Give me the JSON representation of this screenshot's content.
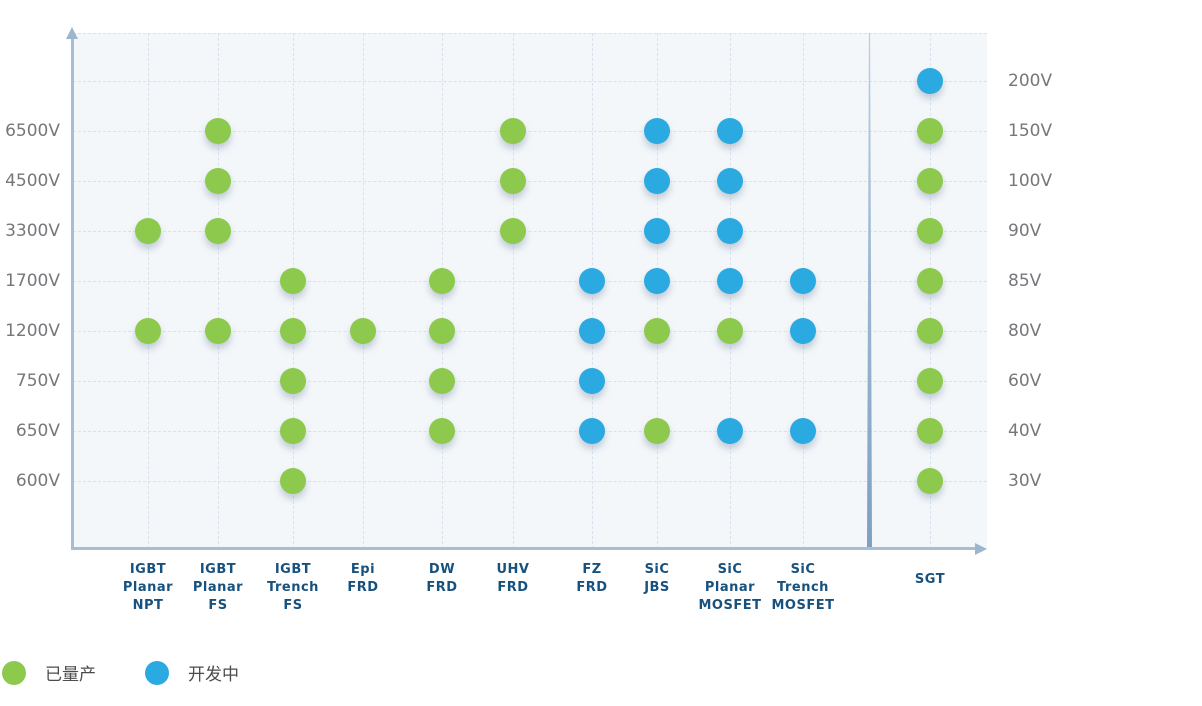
{
  "legend": {
    "items": [
      {
        "label": "已量产",
        "status": "in-production",
        "color": "#8cc94c"
      },
      {
        "label": "开发中",
        "status": "in-development",
        "color": "#2ba9e1"
      }
    ]
  },
  "chart_data": {
    "type": "scatter",
    "title": "",
    "grid": true,
    "row_scale": {
      "left_labels": [
        "",
        "6500V",
        "4500V",
        "3300V",
        "1700V",
        "1200V",
        "750V",
        "650V",
        "600V"
      ],
      "right_labels": [
        "200V",
        "150V",
        "100V",
        "90V",
        "85V",
        "80V",
        "60V",
        "40V",
        "30V"
      ]
    },
    "categories": [
      {
        "name": "IGBT Planar NPT",
        "lines": [
          "IGBT",
          "Planar",
          "NPT"
        ],
        "voltage_scale": "left"
      },
      {
        "name": "IGBT Planar FS",
        "lines": [
          "IGBT",
          "Planar",
          "FS"
        ],
        "voltage_scale": "left"
      },
      {
        "name": "IGBT Trench FS",
        "lines": [
          "IGBT",
          "Trench",
          "FS"
        ],
        "voltage_scale": "left"
      },
      {
        "name": "Epi FRD",
        "lines": [
          "Epi",
          "FRD"
        ],
        "voltage_scale": "left"
      },
      {
        "name": "DW FRD",
        "lines": [
          "DW",
          "FRD"
        ],
        "voltage_scale": "left"
      },
      {
        "name": "UHV FRD",
        "lines": [
          "UHV",
          "FRD"
        ],
        "voltage_scale": "left"
      },
      {
        "name": "FZ FRD",
        "lines": [
          "FZ",
          "FRD"
        ],
        "voltage_scale": "left"
      },
      {
        "name": "SiC JBS",
        "lines": [
          "SiC",
          "JBS"
        ],
        "voltage_scale": "left"
      },
      {
        "name": "SiC Planar MOSFET",
        "lines": [
          "SiC",
          "Planar",
          "MOSFET"
        ],
        "voltage_scale": "left"
      },
      {
        "name": "SiC Trench MOSFET",
        "lines": [
          "SiC",
          "Trench",
          "MOSFET"
        ],
        "voltage_scale": "left"
      },
      {
        "name": "SGT",
        "lines": [
          "SGT"
        ],
        "voltage_scale": "right"
      }
    ],
    "series": [
      {
        "name": "已量产",
        "color": "#8cc94c",
        "points": [
          {
            "category": "IGBT Planar NPT",
            "voltage": "3300V"
          },
          {
            "category": "IGBT Planar NPT",
            "voltage": "1200V"
          },
          {
            "category": "IGBT Planar FS",
            "voltage": "6500V"
          },
          {
            "category": "IGBT Planar FS",
            "voltage": "4500V"
          },
          {
            "category": "IGBT Planar FS",
            "voltage": "3300V"
          },
          {
            "category": "IGBT Planar FS",
            "voltage": "1200V"
          },
          {
            "category": "IGBT Trench FS",
            "voltage": "1700V"
          },
          {
            "category": "IGBT Trench FS",
            "voltage": "1200V"
          },
          {
            "category": "IGBT Trench FS",
            "voltage": "750V"
          },
          {
            "category": "IGBT Trench FS",
            "voltage": "650V"
          },
          {
            "category": "IGBT Trench FS",
            "voltage": "600V"
          },
          {
            "category": "Epi FRD",
            "voltage": "1200V"
          },
          {
            "category": "DW FRD",
            "voltage": "1700V"
          },
          {
            "category": "DW FRD",
            "voltage": "1200V"
          },
          {
            "category": "DW FRD",
            "voltage": "750V"
          },
          {
            "category": "DW FRD",
            "voltage": "650V"
          },
          {
            "category": "UHV FRD",
            "voltage": "6500V"
          },
          {
            "category": "UHV FRD",
            "voltage": "4500V"
          },
          {
            "category": "UHV FRD",
            "voltage": "3300V"
          },
          {
            "category": "SiC JBS",
            "voltage": "1200V"
          },
          {
            "category": "SiC JBS",
            "voltage": "650V"
          },
          {
            "category": "SiC Planar MOSFET",
            "voltage": "1200V"
          },
          {
            "category": "SGT",
            "voltage": "150V"
          },
          {
            "category": "SGT",
            "voltage": "100V"
          },
          {
            "category": "SGT",
            "voltage": "90V"
          },
          {
            "category": "SGT",
            "voltage": "85V"
          },
          {
            "category": "SGT",
            "voltage": "80V"
          },
          {
            "category": "SGT",
            "voltage": "60V"
          },
          {
            "category": "SGT",
            "voltage": "40V"
          },
          {
            "category": "SGT",
            "voltage": "30V"
          }
        ]
      },
      {
        "name": "开发中",
        "color": "#2ba9e1",
        "points": [
          {
            "category": "FZ FRD",
            "voltage": "1700V"
          },
          {
            "category": "FZ FRD",
            "voltage": "1200V"
          },
          {
            "category": "FZ FRD",
            "voltage": "750V"
          },
          {
            "category": "FZ FRD",
            "voltage": "650V"
          },
          {
            "category": "SiC JBS",
            "voltage": "6500V"
          },
          {
            "category": "SiC JBS",
            "voltage": "4500V"
          },
          {
            "category": "SiC JBS",
            "voltage": "3300V"
          },
          {
            "category": "SiC JBS",
            "voltage": "1700V"
          },
          {
            "category": "SiC Planar MOSFET",
            "voltage": "6500V"
          },
          {
            "category": "SiC Planar MOSFET",
            "voltage": "4500V"
          },
          {
            "category": "SiC Planar MOSFET",
            "voltage": "3300V"
          },
          {
            "category": "SiC Planar MOSFET",
            "voltage": "1700V"
          },
          {
            "category": "SiC Planar MOSFET",
            "voltage": "650V"
          },
          {
            "category": "SiC Trench MOSFET",
            "voltage": "1700V"
          },
          {
            "category": "SiC Trench MOSFET",
            "voltage": "1200V"
          },
          {
            "category": "SiC Trench MOSFET",
            "voltage": "650V"
          },
          {
            "category": "SGT",
            "voltage": "200V"
          }
        ]
      }
    ]
  }
}
